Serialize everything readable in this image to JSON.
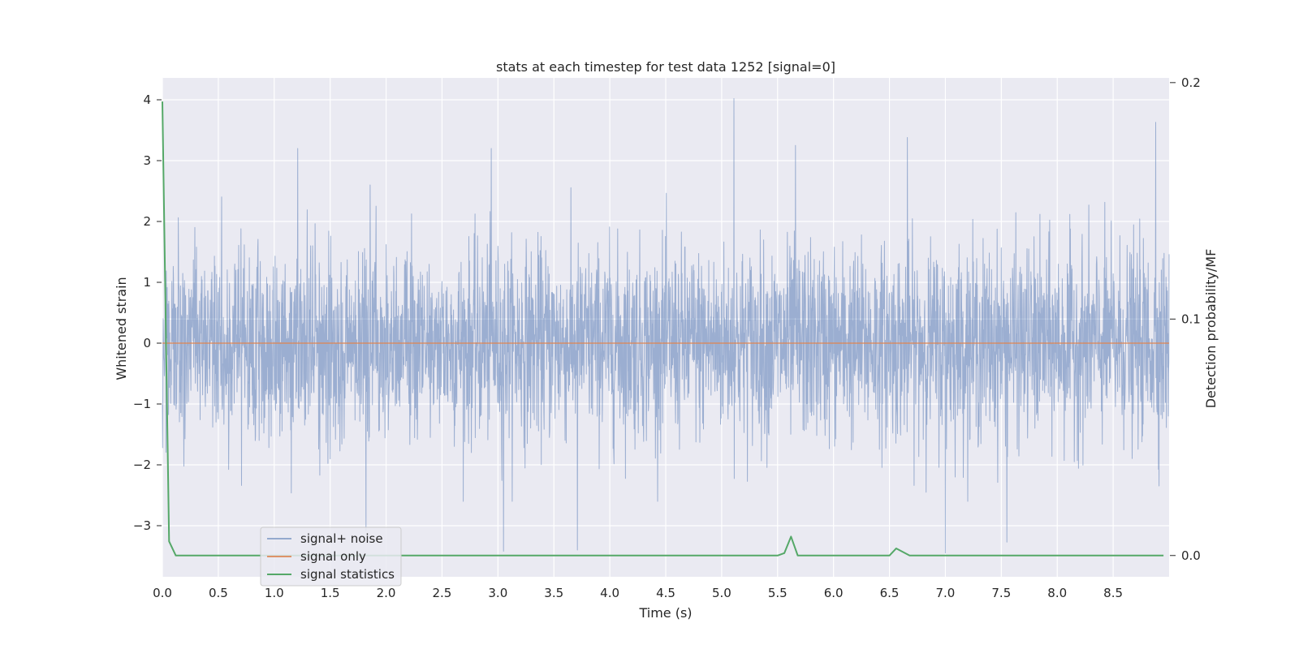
{
  "chart_data": {
    "type": "line",
    "title": "stats at each timestep for test data 1252 [signal=0]",
    "xlabel": "Time (s)",
    "ylabel": "Whitened strain",
    "y2label": "Detection probability/MF",
    "xlim": [
      0,
      9.0
    ],
    "ylim": [
      -3.84,
      4.36
    ],
    "y2lim": [
      -0.009,
      0.202
    ],
    "x_ticks": [
      0.0,
      0.5,
      1.0,
      1.5,
      2.0,
      2.5,
      3.0,
      3.5,
      4.0,
      4.5,
      5.0,
      5.5,
      6.0,
      6.5,
      7.0,
      7.5,
      8.0,
      8.5
    ],
    "x_tick_labels": [
      "0.0",
      "0.5",
      "1.0",
      "1.5",
      "2.0",
      "2.5",
      "3.0",
      "3.5",
      "4.0",
      "4.5",
      "5.0",
      "5.5",
      "6.0",
      "6.5",
      "7.0",
      "7.5",
      "8.0",
      "8.5"
    ],
    "y_ticks": [
      -3,
      -2,
      -1,
      0,
      1,
      2,
      3,
      4
    ],
    "y_tick_labels": [
      "−3",
      "−2",
      "−1",
      "0",
      "1",
      "2",
      "3",
      "4"
    ],
    "y2_ticks": [
      0.0,
      0.1,
      0.2
    ],
    "y2_tick_labels": [
      "0.0",
      "0.1",
      "0.2"
    ],
    "grid": true,
    "legend_position": "lower-left",
    "series": [
      {
        "name": "signal+ noise",
        "axis": "left",
        "color": "#4c72b0",
        "description": "whitened noise, amplitude roughly ±2 with peaks near ±4",
        "peaks": [
          {
            "x": 5.11,
            "y": 4.02
          },
          {
            "x": 8.88,
            "y": 3.63
          },
          {
            "x": 6.66,
            "y": 3.38
          },
          {
            "x": 1.21,
            "y": 3.2
          },
          {
            "x": 2.94,
            "y": 3.2
          },
          {
            "x": 5.66,
            "y": 3.25
          },
          {
            "x": 3.71,
            "y": -3.4
          },
          {
            "x": 3.05,
            "y": -3.42
          },
          {
            "x": 7.0,
            "y": -3.45
          },
          {
            "x": 7.55,
            "y": -3.27
          },
          {
            "x": 1.82,
            "y": -3.08
          }
        ]
      },
      {
        "name": "signal only",
        "axis": "left",
        "color": "#dd8452",
        "x": [
          0.0,
          9.0
        ],
        "y": [
          0.0,
          0.0
        ]
      },
      {
        "name": "signal statistics",
        "axis": "right",
        "color": "#55a868",
        "x": [
          0.0,
          0.06,
          0.12,
          5.5,
          5.56,
          5.62,
          5.68,
          6.5,
          6.56,
          6.68,
          8.95
        ],
        "y": [
          0.192,
          0.006,
          0.0,
          0.0,
          0.001,
          0.008,
          0.0,
          0.0,
          0.003,
          0.0,
          0.0
        ]
      }
    ],
    "axhline_right": 0.1
  }
}
